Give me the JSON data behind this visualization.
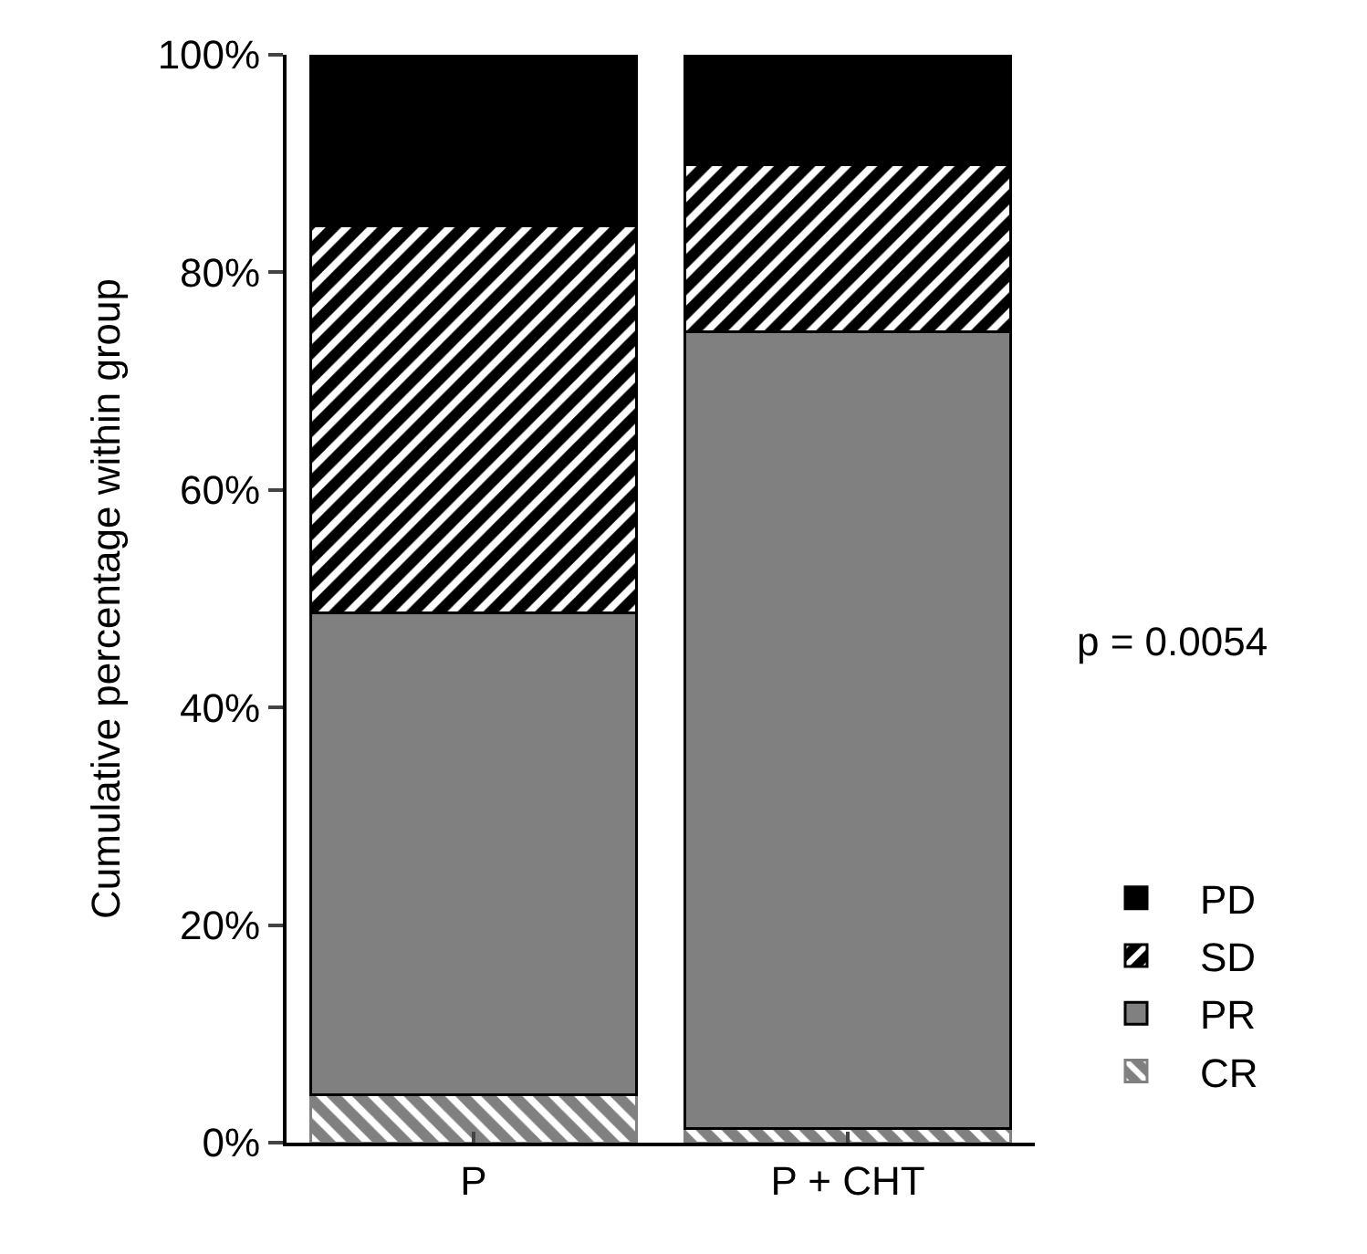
{
  "chart_data": {
    "type": "bar",
    "stacked": true,
    "ylabel": "Cumulative percentage within group",
    "categories": [
      "P",
      "P + CHT"
    ],
    "series": [
      {
        "name": "CR",
        "color": "#808080",
        "values": [
          4.4,
          1.3
        ]
      },
      {
        "name": "PR",
        "color": "#808080",
        "values": [
          44.3,
          73.2
        ]
      },
      {
        "name": "SD",
        "color": "#000000",
        "values": [
          35.6,
          15.4
        ]
      },
      {
        "name": "PD",
        "color": "#000000",
        "values": [
          15.7,
          10.1
        ]
      }
    ],
    "ylim": [
      0,
      100
    ],
    "yticks": [
      {
        "value": 0,
        "label": "0%"
      },
      {
        "value": 20,
        "label": "20%"
      },
      {
        "value": 40,
        "label": "40%"
      },
      {
        "value": 60,
        "label": "60%"
      },
      {
        "value": 80,
        "label": "80%"
      },
      {
        "value": 100,
        "label": "100%"
      }
    ],
    "grid": false,
    "legend": "bottom right",
    "annotations": [
      "p = 0.0054"
    ]
  }
}
